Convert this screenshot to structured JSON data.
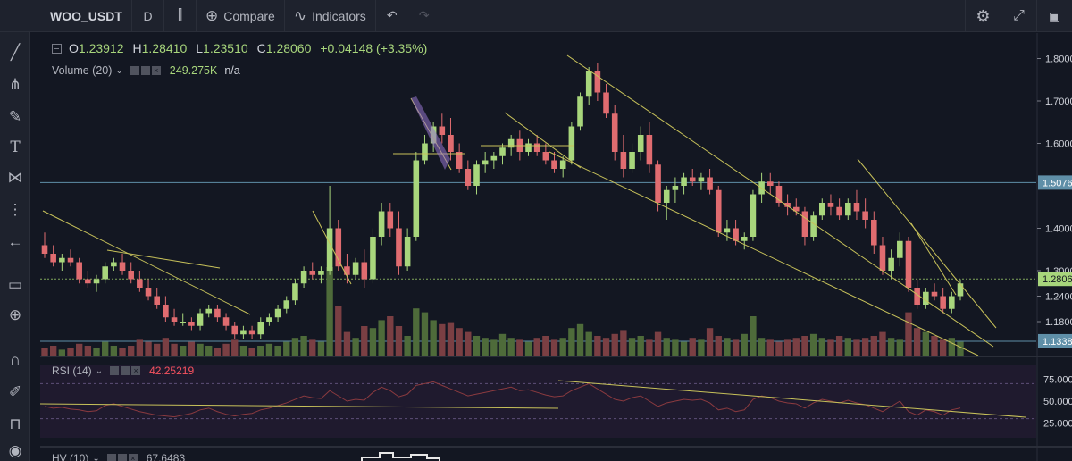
{
  "toolbar": {
    "symbol": "WOO_USDT",
    "interval": "D",
    "compare_label": "Compare",
    "indicators_label": "Indicators"
  },
  "legend": {
    "open_key": "O",
    "open": "1.23912",
    "high_key": "H",
    "high": "1.28410",
    "low_key": "L",
    "low": "1.23510",
    "close_key": "C",
    "close": "1.28060",
    "change": "+0.04148 (+3.35%)"
  },
  "volume": {
    "label": "Volume (20)",
    "value": "249.275K",
    "extra": "n/a"
  },
  "rsi": {
    "label": "RSI (14)",
    "value": "42.25219"
  },
  "hv": {
    "label": "HV (10)",
    "value": "67.6483"
  },
  "price_axis": {
    "ticks": [
      "1.8000",
      "1.7000",
      "1.6000",
      "1.4000",
      "1.3000",
      "1.2400",
      "1.1800"
    ],
    "badges": [
      {
        "text": "1.5076",
        "style": "blue"
      },
      {
        "text": "1.2806",
        "style": "green"
      },
      {
        "text": "1.1338",
        "style": "blue"
      }
    ]
  },
  "rsi_axis": {
    "ticks": [
      "75.000",
      "50.000",
      "25.000"
    ]
  },
  "chart_data": {
    "type": "candlestick",
    "candles": [
      [
        1.36,
        1.39,
        1.33,
        1.34
      ],
      [
        1.34,
        1.36,
        1.31,
        1.32
      ],
      [
        1.32,
        1.34,
        1.3,
        1.33
      ],
      [
        1.33,
        1.35,
        1.31,
        1.32
      ],
      [
        1.32,
        1.33,
        1.27,
        1.28
      ],
      [
        1.28,
        1.3,
        1.26,
        1.27
      ],
      [
        1.27,
        1.29,
        1.25,
        1.28
      ],
      [
        1.28,
        1.32,
        1.27,
        1.31
      ],
      [
        1.31,
        1.33,
        1.3,
        1.32
      ],
      [
        1.32,
        1.34,
        1.29,
        1.3
      ],
      [
        1.3,
        1.32,
        1.27,
        1.28
      ],
      [
        1.28,
        1.3,
        1.25,
        1.26
      ],
      [
        1.26,
        1.28,
        1.23,
        1.24
      ],
      [
        1.24,
        1.26,
        1.21,
        1.22
      ],
      [
        1.22,
        1.24,
        1.18,
        1.19
      ],
      [
        1.19,
        1.21,
        1.17,
        1.18
      ],
      [
        1.18,
        1.2,
        1.17,
        1.18
      ],
      [
        1.18,
        1.19,
        1.16,
        1.17
      ],
      [
        1.17,
        1.21,
        1.16,
        1.2
      ],
      [
        1.2,
        1.22,
        1.19,
        1.21
      ],
      [
        1.21,
        1.22,
        1.18,
        1.19
      ],
      [
        1.19,
        1.2,
        1.16,
        1.17
      ],
      [
        1.17,
        1.18,
        1.14,
        1.15
      ],
      [
        1.15,
        1.17,
        1.14,
        1.16
      ],
      [
        1.16,
        1.17,
        1.14,
        1.15
      ],
      [
        1.15,
        1.19,
        1.14,
        1.18
      ],
      [
        1.18,
        1.2,
        1.17,
        1.19
      ],
      [
        1.19,
        1.22,
        1.18,
        1.21
      ],
      [
        1.21,
        1.24,
        1.2,
        1.23
      ],
      [
        1.23,
        1.28,
        1.22,
        1.27
      ],
      [
        1.27,
        1.31,
        1.26,
        1.3
      ],
      [
        1.3,
        1.32,
        1.28,
        1.29
      ],
      [
        1.29,
        1.31,
        1.27,
        1.3
      ],
      [
        1.3,
        1.5,
        1.29,
        1.4
      ],
      [
        1.4,
        1.42,
        1.3,
        1.31
      ],
      [
        1.31,
        1.34,
        1.27,
        1.29
      ],
      [
        1.29,
        1.33,
        1.28,
        1.32
      ],
      [
        1.32,
        1.35,
        1.26,
        1.28
      ],
      [
        1.28,
        1.4,
        1.27,
        1.38
      ],
      [
        1.38,
        1.46,
        1.36,
        1.44
      ],
      [
        1.44,
        1.46,
        1.38,
        1.4
      ],
      [
        1.4,
        1.44,
        1.29,
        1.31
      ],
      [
        1.31,
        1.4,
        1.3,
        1.38
      ],
      [
        1.38,
        1.58,
        1.37,
        1.56
      ],
      [
        1.56,
        1.62,
        1.55,
        1.6
      ],
      [
        1.6,
        1.65,
        1.58,
        1.64
      ],
      [
        1.64,
        1.67,
        1.6,
        1.62
      ],
      [
        1.62,
        1.66,
        1.56,
        1.58
      ],
      [
        1.58,
        1.6,
        1.53,
        1.54
      ],
      [
        1.54,
        1.56,
        1.49,
        1.5
      ],
      [
        1.5,
        1.56,
        1.48,
        1.55
      ],
      [
        1.55,
        1.58,
        1.53,
        1.56
      ],
      [
        1.56,
        1.58,
        1.54,
        1.57
      ],
      [
        1.57,
        1.6,
        1.55,
        1.59
      ],
      [
        1.59,
        1.62,
        1.57,
        1.61
      ],
      [
        1.61,
        1.63,
        1.56,
        1.58
      ],
      [
        1.58,
        1.61,
        1.57,
        1.6
      ],
      [
        1.6,
        1.62,
        1.57,
        1.58
      ],
      [
        1.58,
        1.6,
        1.55,
        1.56
      ],
      [
        1.56,
        1.58,
        1.53,
        1.54
      ],
      [
        1.54,
        1.57,
        1.52,
        1.56
      ],
      [
        1.56,
        1.65,
        1.55,
        1.64
      ],
      [
        1.64,
        1.72,
        1.63,
        1.71
      ],
      [
        1.71,
        1.78,
        1.69,
        1.77
      ],
      [
        1.77,
        1.79,
        1.7,
        1.72
      ],
      [
        1.72,
        1.74,
        1.66,
        1.67
      ],
      [
        1.67,
        1.69,
        1.56,
        1.58
      ],
      [
        1.58,
        1.62,
        1.52,
        1.54
      ],
      [
        1.54,
        1.6,
        1.53,
        1.58
      ],
      [
        1.58,
        1.64,
        1.56,
        1.62
      ],
      [
        1.62,
        1.65,
        1.53,
        1.55
      ],
      [
        1.55,
        1.56,
        1.44,
        1.46
      ],
      [
        1.46,
        1.5,
        1.42,
        1.49
      ],
      [
        1.49,
        1.52,
        1.46,
        1.5
      ],
      [
        1.5,
        1.53,
        1.48,
        1.52
      ],
      [
        1.52,
        1.54,
        1.5,
        1.51
      ],
      [
        1.51,
        1.53,
        1.49,
        1.52
      ],
      [
        1.52,
        1.54,
        1.48,
        1.49
      ],
      [
        1.49,
        1.5,
        1.38,
        1.39
      ],
      [
        1.39,
        1.42,
        1.37,
        1.4
      ],
      [
        1.4,
        1.42,
        1.36,
        1.37
      ],
      [
        1.37,
        1.39,
        1.35,
        1.38
      ],
      [
        1.38,
        1.49,
        1.37,
        1.48
      ],
      [
        1.48,
        1.53,
        1.46,
        1.51
      ],
      [
        1.51,
        1.53,
        1.48,
        1.5
      ],
      [
        1.5,
        1.51,
        1.45,
        1.46
      ],
      [
        1.46,
        1.48,
        1.43,
        1.45
      ],
      [
        1.45,
        1.47,
        1.43,
        1.44
      ],
      [
        1.44,
        1.45,
        1.36,
        1.38
      ],
      [
        1.38,
        1.44,
        1.37,
        1.43
      ],
      [
        1.43,
        1.47,
        1.42,
        1.46
      ],
      [
        1.46,
        1.48,
        1.43,
        1.45
      ],
      [
        1.45,
        1.47,
        1.42,
        1.43
      ],
      [
        1.43,
        1.47,
        1.42,
        1.46
      ],
      [
        1.46,
        1.49,
        1.42,
        1.44
      ],
      [
        1.44,
        1.47,
        1.4,
        1.42
      ],
      [
        1.42,
        1.44,
        1.34,
        1.36
      ],
      [
        1.36,
        1.38,
        1.29,
        1.3
      ],
      [
        1.3,
        1.35,
        1.28,
        1.33
      ],
      [
        1.33,
        1.39,
        1.31,
        1.37
      ],
      [
        1.37,
        1.38,
        1.25,
        1.26
      ],
      [
        1.26,
        1.28,
        1.21,
        1.22
      ],
      [
        1.22,
        1.26,
        1.21,
        1.25
      ],
      [
        1.25,
        1.27,
        1.23,
        1.24
      ],
      [
        1.24,
        1.26,
        1.2,
        1.21
      ],
      [
        1.21,
        1.25,
        1.2,
        1.24
      ],
      [
        1.24,
        1.28,
        1.23,
        1.27
      ]
    ],
    "volume": [
      4,
      5,
      3,
      4,
      6,
      5,
      4,
      7,
      5,
      4,
      5,
      8,
      7,
      6,
      9,
      6,
      5,
      7,
      6,
      5,
      4,
      6,
      8,
      5,
      4,
      5,
      6,
      5,
      7,
      9,
      10,
      8,
      7,
      45,
      25,
      12,
      9,
      15,
      14,
      18,
      20,
      15,
      10,
      24,
      22,
      18,
      16,
      17,
      14,
      12,
      10,
      9,
      8,
      11,
      9,
      8,
      7,
      9,
      10,
      8,
      9,
      14,
      16,
      12,
      10,
      9,
      11,
      13,
      9,
      10,
      8,
      12,
      9,
      8,
      7,
      9,
      8,
      14,
      10,
      9,
      8,
      11,
      20,
      9,
      8,
      7,
      8,
      9,
      10,
      11,
      9,
      8,
      10,
      9,
      8,
      9,
      10,
      12,
      9,
      8,
      22,
      14,
      12,
      10,
      8,
      9,
      7
    ],
    "rsi": [
      44,
      42,
      43,
      41,
      40,
      38,
      39,
      45,
      47,
      44,
      41,
      38,
      36,
      34,
      33,
      32,
      34,
      36,
      40,
      42,
      38,
      35,
      33,
      35,
      36,
      40,
      42,
      45,
      48,
      52,
      56,
      54,
      53,
      62,
      56,
      50,
      52,
      51,
      60,
      66,
      62,
      55,
      58,
      68,
      70,
      72,
      68,
      64,
      60,
      56,
      58,
      60,
      62,
      64,
      66,
      62,
      63,
      60,
      57,
      55,
      56,
      62,
      66,
      70,
      64,
      58,
      52,
      50,
      54,
      56,
      50,
      44,
      48,
      50,
      52,
      51,
      52,
      48,
      40,
      42,
      38,
      40,
      52,
      56,
      54,
      50,
      48,
      47,
      42,
      48,
      52,
      50,
      48,
      51,
      48,
      46,
      42,
      38,
      44,
      50,
      38,
      34,
      40,
      38,
      34,
      40,
      42.25
    ],
    "price_range": [
      1.1,
      1.86
    ],
    "rsi_range": [
      0,
      100
    ]
  }
}
